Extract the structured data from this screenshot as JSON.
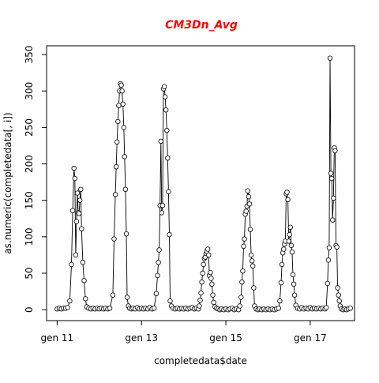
{
  "chart_data": {
    "type": "line",
    "title": "CM3Dn_Avg",
    "title_color": "#ff0000",
    "xlabel": "completedata$date",
    "ylabel": "as.numeric(completedata[, i])",
    "x_ticks": [
      "gen 11",
      "gen 13",
      "gen 15",
      "gen 17"
    ],
    "y_ticks": [
      "0",
      "50",
      "100",
      "150",
      "200",
      "250",
      "300",
      "350"
    ],
    "y_tick_values": [
      0,
      50,
      100,
      150,
      200,
      250,
      300,
      350
    ],
    "x_tick_values": [
      11,
      13,
      15,
      17
    ],
    "ylim": [
      -15,
      362
    ],
    "xlim": [
      10.75,
      18.05
    ],
    "grid": false,
    "marker": "open-circle",
    "line_color": "#000000",
    "series": [
      {
        "values": [
          [
            11.0,
            1
          ],
          [
            11.05,
            2
          ],
          [
            11.1,
            1
          ],
          [
            11.15,
            2
          ],
          [
            11.2,
            2
          ],
          [
            11.25,
            3
          ],
          [
            11.3,
            12
          ],
          [
            11.34,
            62
          ],
          [
            11.37,
            136
          ],
          [
            11.4,
            194
          ],
          [
            11.42,
            180
          ],
          [
            11.44,
            75
          ],
          [
            11.46,
            121
          ],
          [
            11.48,
            160
          ],
          [
            11.5,
            133
          ],
          [
            11.52,
            132
          ],
          [
            11.54,
            150
          ],
          [
            11.56,
            165
          ],
          [
            11.58,
            111
          ],
          [
            11.61,
            65
          ],
          [
            11.64,
            40
          ],
          [
            11.67,
            15
          ],
          [
            11.7,
            4
          ],
          [
            11.75,
            2
          ],
          [
            11.8,
            1
          ],
          [
            11.85,
            2
          ],
          [
            11.9,
            1
          ],
          [
            11.95,
            2
          ],
          [
            12.0,
            1
          ],
          [
            12.05,
            2
          ],
          [
            12.1,
            1
          ],
          [
            12.15,
            2
          ],
          [
            12.2,
            1
          ],
          [
            12.25,
            2
          ],
          [
            12.32,
            20
          ],
          [
            12.35,
            97
          ],
          [
            12.38,
            158
          ],
          [
            12.4,
            196
          ],
          [
            12.42,
            230
          ],
          [
            12.44,
            258
          ],
          [
            12.46,
            280
          ],
          [
            12.48,
            300
          ],
          [
            12.5,
            310
          ],
          [
            12.52,
            308
          ],
          [
            12.54,
            300
          ],
          [
            12.56,
            282
          ],
          [
            12.58,
            250
          ],
          [
            12.6,
            210
          ],
          [
            12.62,
            165
          ],
          [
            12.64,
            104
          ],
          [
            12.66,
            17
          ],
          [
            12.69,
            5
          ],
          [
            12.72,
            2
          ],
          [
            12.76,
            1
          ],
          [
            12.8,
            2
          ],
          [
            12.85,
            1
          ],
          [
            12.9,
            3
          ],
          [
            12.95,
            1
          ],
          [
            13.0,
            2
          ],
          [
            13.05,
            1
          ],
          [
            13.1,
            2
          ],
          [
            13.15,
            1
          ],
          [
            13.2,
            3
          ],
          [
            13.25,
            1
          ],
          [
            13.3,
            2
          ],
          [
            13.35,
            22
          ],
          [
            13.38,
            47
          ],
          [
            13.4,
            65
          ],
          [
            13.42,
            82
          ],
          [
            13.44,
            143
          ],
          [
            13.46,
            231
          ],
          [
            13.48,
            133
          ],
          [
            13.5,
            143
          ],
          [
            13.52,
            303
          ],
          [
            13.54,
            306
          ],
          [
            13.56,
            292
          ],
          [
            13.58,
            274
          ],
          [
            13.6,
            246
          ],
          [
            13.62,
            208
          ],
          [
            13.64,
            162
          ],
          [
            13.66,
            103
          ],
          [
            13.68,
            12
          ],
          [
            13.71,
            5
          ],
          [
            13.75,
            2
          ],
          [
            13.8,
            1
          ],
          [
            13.85,
            2
          ],
          [
            13.9,
            1
          ],
          [
            13.95,
            2
          ],
          [
            14.0,
            1
          ],
          [
            14.05,
            2
          ],
          [
            14.1,
            1
          ],
          [
            14.15,
            2
          ],
          [
            14.2,
            3
          ],
          [
            14.25,
            1
          ],
          [
            14.3,
            2
          ],
          [
            14.35,
            1
          ],
          [
            14.37,
            5
          ],
          [
            14.39,
            13
          ],
          [
            14.41,
            23
          ],
          [
            14.43,
            38
          ],
          [
            14.45,
            50
          ],
          [
            14.47,
            62
          ],
          [
            14.49,
            70
          ],
          [
            14.51,
            72
          ],
          [
            14.53,
            77
          ],
          [
            14.55,
            80
          ],
          [
            14.57,
            83
          ],
          [
            14.59,
            75
          ],
          [
            14.61,
            47
          ],
          [
            14.63,
            51
          ],
          [
            14.65,
            43
          ],
          [
            14.67,
            35
          ],
          [
            14.69,
            20
          ],
          [
            14.71,
            10
          ],
          [
            14.74,
            4
          ],
          [
            14.78,
            2
          ],
          [
            14.82,
            1
          ],
          [
            14.86,
            0
          ],
          [
            14.9,
            1
          ],
          [
            14.95,
            0
          ],
          [
            15.0,
            1
          ],
          [
            15.05,
            0
          ],
          [
            15.1,
            1
          ],
          [
            15.15,
            2
          ],
          [
            15.2,
            0
          ],
          [
            15.25,
            1
          ],
          [
            15.3,
            0
          ],
          [
            15.33,
            5
          ],
          [
            15.36,
            17
          ],
          [
            15.38,
            38
          ],
          [
            15.4,
            53
          ],
          [
            15.42,
            87
          ],
          [
            15.44,
            97
          ],
          [
            15.46,
            131
          ],
          [
            15.48,
            135
          ],
          [
            15.5,
            142
          ],
          [
            15.52,
            163
          ],
          [
            15.54,
            155
          ],
          [
            15.56,
            145
          ],
          [
            15.58,
            110
          ],
          [
            15.6,
            75
          ],
          [
            15.62,
            67
          ],
          [
            15.64,
            60
          ],
          [
            15.66,
            30
          ],
          [
            15.68,
            5
          ],
          [
            15.72,
            1
          ],
          [
            15.76,
            0
          ],
          [
            15.8,
            1
          ],
          [
            15.85,
            0
          ],
          [
            15.9,
            1
          ],
          [
            15.95,
            0
          ],
          [
            16.0,
            1
          ],
          [
            16.05,
            0
          ],
          [
            16.1,
            1
          ],
          [
            16.15,
            0
          ],
          [
            16.2,
            1
          ],
          [
            16.25,
            2
          ],
          [
            16.28,
            12
          ],
          [
            16.31,
            37
          ],
          [
            16.33,
            62
          ],
          [
            16.35,
            78
          ],
          [
            16.37,
            83
          ],
          [
            16.39,
            90
          ],
          [
            16.41,
            94
          ],
          [
            16.43,
            159
          ],
          [
            16.45,
            161
          ],
          [
            16.47,
            151
          ],
          [
            16.49,
            94
          ],
          [
            16.51,
            103
          ],
          [
            16.53,
            113
          ],
          [
            16.55,
            88
          ],
          [
            16.57,
            79
          ],
          [
            16.59,
            48
          ],
          [
            16.61,
            35
          ],
          [
            16.63,
            20
          ],
          [
            16.66,
            6
          ],
          [
            16.7,
            2
          ],
          [
            16.75,
            1
          ],
          [
            16.8,
            3
          ],
          [
            16.85,
            1
          ],
          [
            16.9,
            2
          ],
          [
            16.95,
            1
          ],
          [
            17.0,
            3
          ],
          [
            17.05,
            1
          ],
          [
            17.1,
            2
          ],
          [
            17.15,
            1
          ],
          [
            17.2,
            2
          ],
          [
            17.25,
            1
          ],
          [
            17.3,
            2
          ],
          [
            17.35,
            1
          ],
          [
            17.38,
            3
          ],
          [
            17.41,
            36
          ],
          [
            17.43,
            68
          ],
          [
            17.45,
            85
          ],
          [
            17.47,
            345
          ],
          [
            17.49,
            187
          ],
          [
            17.51,
            180
          ],
          [
            17.53,
            123
          ],
          [
            17.55,
            153
          ],
          [
            17.57,
            222
          ],
          [
            17.59,
            218
          ],
          [
            17.61,
            88
          ],
          [
            17.63,
            86
          ],
          [
            17.65,
            30
          ],
          [
            17.67,
            20
          ],
          [
            17.69,
            12
          ],
          [
            17.71,
            5
          ],
          [
            17.74,
            1
          ],
          [
            17.78,
            0
          ],
          [
            17.82,
            1
          ],
          [
            17.86,
            0
          ],
          [
            17.9,
            1
          ],
          [
            17.95,
            2
          ]
        ]
      }
    ]
  }
}
